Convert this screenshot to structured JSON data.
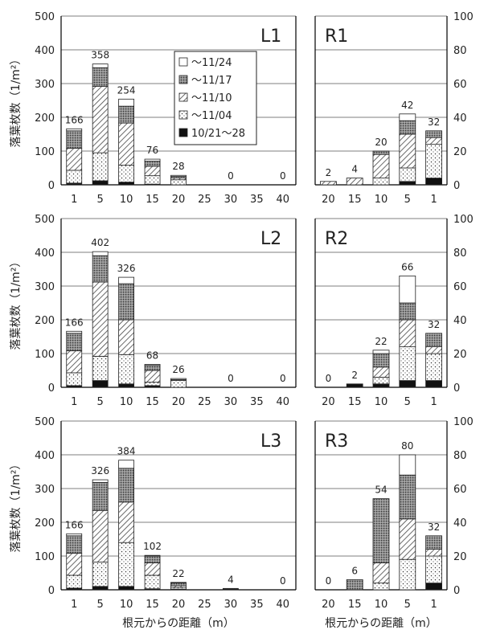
{
  "chart_data": {
    "type": "bar",
    "stacked": true,
    "xlabel": "根元からの距離（m）",
    "ylabel": "落葉枚数（1/m²）",
    "legend": {
      "placement": "top-right of L1 panel",
      "entries": [
        "〜11/24",
        "〜11/17",
        "〜11/10",
        "〜11/04",
        "10/21〜28"
      ]
    },
    "series_styles": [
      {
        "name": "10/21〜28",
        "pattern": "solid-black"
      },
      {
        "name": "〜11/04",
        "pattern": "dots"
      },
      {
        "name": "〜11/10",
        "pattern": "diagonal-hatch"
      },
      {
        "name": "〜11/17",
        "pattern": "dense-gray"
      },
      {
        "name": "〜11/24",
        "pattern": "white"
      }
    ],
    "panels": [
      {
        "id": "L1",
        "label": "L1",
        "side": "left",
        "ylim": [
          0,
          500
        ],
        "yticks": [
          0,
          100,
          200,
          300,
          400,
          500
        ],
        "categories": [
          "1",
          "5",
          "10",
          "15",
          "20",
          "25",
          "30",
          "35",
          "40"
        ],
        "series": [
          {
            "name": "10/21〜28",
            "values": [
              5,
              12,
              8,
              2,
              0,
              0,
              0,
              0,
              0
            ]
          },
          {
            "name": "〜11/04",
            "values": [
              38,
              83,
              50,
              25,
              15,
              0,
              0,
              0,
              0
            ]
          },
          {
            "name": "〜11/10",
            "values": [
              65,
              197,
              125,
              28,
              5,
              0,
              0,
              0,
              0
            ]
          },
          {
            "name": "〜11/17",
            "values": [
              52,
              55,
              50,
              15,
              5,
              0,
              0,
              0,
              0
            ]
          },
          {
            "name": "〜11/24",
            "values": [
              6,
              11,
              21,
              6,
              3,
              0,
              0,
              0,
              0
            ]
          }
        ],
        "totals": [
          "166",
          "358",
          "254",
          "76",
          "28",
          "",
          "0",
          "",
          "0"
        ]
      },
      {
        "id": "L2",
        "label": "L2",
        "side": "left",
        "ylim": [
          0,
          500
        ],
        "yticks": [
          0,
          100,
          200,
          300,
          400,
          500
        ],
        "categories": [
          "1",
          "5",
          "10",
          "15",
          "20",
          "25",
          "30",
          "35",
          "40"
        ],
        "series": [
          {
            "name": "10/21〜28",
            "values": [
              5,
              20,
              10,
              5,
              0,
              0,
              0,
              0,
              0
            ]
          },
          {
            "name": "〜11/04",
            "values": [
              38,
              72,
              87,
              10,
              20,
              0,
              0,
              0,
              0
            ]
          },
          {
            "name": "〜11/10",
            "values": [
              65,
              220,
              103,
              35,
              0,
              0,
              0,
              0,
              0
            ]
          },
          {
            "name": "〜11/17",
            "values": [
              52,
              78,
              107,
              15,
              3,
              0,
              0,
              0,
              0
            ]
          },
          {
            "name": "〜11/24",
            "values": [
              6,
              12,
              19,
              3,
              3,
              0,
              0,
              0,
              0
            ]
          }
        ],
        "totals": [
          "166",
          "402",
          "326",
          "68",
          "26",
          "",
          "0",
          "",
          "0"
        ]
      },
      {
        "id": "L3",
        "label": "L3",
        "side": "left",
        "ylim": [
          0,
          500
        ],
        "yticks": [
          0,
          100,
          200,
          300,
          400,
          500
        ],
        "categories": [
          "1",
          "5",
          "10",
          "15",
          "20",
          "25",
          "30",
          "35",
          "40"
        ],
        "series": [
          {
            "name": "10/21〜28",
            "values": [
              5,
              10,
              10,
              3,
              2,
              0,
              2,
              0,
              0
            ]
          },
          {
            "name": "〜11/04",
            "values": [
              38,
              72,
              130,
              40,
              5,
              0,
              0,
              0,
              0
            ]
          },
          {
            "name": "〜11/10",
            "values": [
              65,
              153,
              120,
              37,
              5,
              0,
              0,
              0,
              0
            ]
          },
          {
            "name": "〜11/17",
            "values": [
              52,
              83,
              100,
              20,
              8,
              0,
              2,
              0,
              0
            ]
          },
          {
            "name": "〜11/24",
            "values": [
              6,
              8,
              24,
              2,
              2,
              0,
              0,
              0,
              0
            ]
          }
        ],
        "totals": [
          "166",
          "326",
          "384",
          "102",
          "22",
          "",
          "4",
          "",
          "0"
        ]
      },
      {
        "id": "R1",
        "label": "R1",
        "side": "right",
        "ylim": [
          0,
          100
        ],
        "yticks": [
          0,
          20,
          40,
          60,
          80,
          100
        ],
        "categories": [
          "20",
          "15",
          "10",
          "5",
          "1"
        ],
        "series": [
          {
            "name": "10/21〜28",
            "values": [
              0,
              0,
              0,
              2,
              4
            ]
          },
          {
            "name": "〜11/04",
            "values": [
              0,
              0,
              4,
              8,
              20
            ]
          },
          {
            "name": "〜11/10",
            "values": [
              2,
              4,
              14,
              20,
              4
            ]
          },
          {
            "name": "〜11/17",
            "values": [
              0,
              0,
              2,
              8,
              4
            ]
          },
          {
            "name": "〜11/24",
            "values": [
              0,
              0,
              0,
              4,
              0
            ]
          }
        ],
        "totals": [
          "2",
          "4",
          "20",
          "42",
          "32"
        ]
      },
      {
        "id": "R2",
        "label": "R2",
        "side": "right",
        "ylim": [
          0,
          100
        ],
        "yticks": [
          0,
          20,
          40,
          60,
          80,
          100
        ],
        "categories": [
          "20",
          "15",
          "10",
          "5",
          "1"
        ],
        "series": [
          {
            "name": "10/21〜28",
            "values": [
              0,
              2,
              2,
              4,
              4
            ]
          },
          {
            "name": "〜11/04",
            "values": [
              0,
              0,
              4,
              20,
              16
            ]
          },
          {
            "name": "〜11/10",
            "values": [
              0,
              0,
              6,
              16,
              4
            ]
          },
          {
            "name": "〜11/17",
            "values": [
              0,
              0,
              8,
              10,
              8
            ]
          },
          {
            "name": "〜11/24",
            "values": [
              0,
              0,
              2,
              16,
              0
            ]
          }
        ],
        "totals": [
          "0",
          "2",
          "22",
          "66",
          "32"
        ]
      },
      {
        "id": "R3",
        "label": "R3",
        "side": "right",
        "ylim": [
          0,
          100
        ],
        "yticks": [
          0,
          20,
          40,
          60,
          80,
          100
        ],
        "categories": [
          "20",
          "15",
          "10",
          "5",
          "1"
        ],
        "series": [
          {
            "name": "10/21〜28",
            "values": [
              0,
              0,
              0,
              0,
              4
            ]
          },
          {
            "name": "〜11/04",
            "values": [
              0,
              0,
              4,
              18,
              16
            ]
          },
          {
            "name": "〜11/10",
            "values": [
              0,
              0,
              12,
              24,
              4
            ]
          },
          {
            "name": "〜11/17",
            "values": [
              0,
              6,
              38,
              26,
              8
            ]
          },
          {
            "name": "〜11/24",
            "values": [
              0,
              0,
              0,
              12,
              0
            ]
          }
        ],
        "totals": [
          "0",
          "6",
          "54",
          "80",
          "32"
        ]
      }
    ]
  }
}
